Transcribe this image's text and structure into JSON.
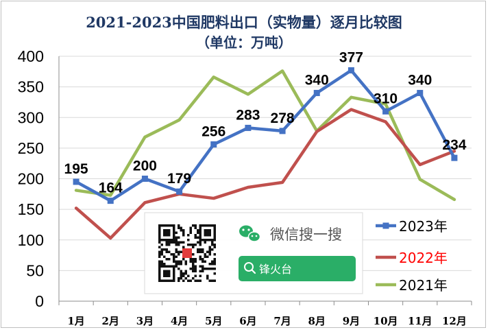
{
  "chart_data": {
    "type": "line",
    "title": "2021-2023中国肥料出口（实物量）逐月比较图",
    "subtitle": "（单位：万吨）",
    "categories": [
      "1月",
      "2月",
      "3月",
      "4月",
      "5月",
      "6月",
      "7月",
      "8月",
      "9月",
      "10月",
      "11月",
      "12月"
    ],
    "ylim": [
      0,
      400
    ],
    "yticks": [
      0,
      50,
      100,
      150,
      200,
      250,
      300,
      350,
      400
    ],
    "grid": true,
    "legend_position": "bottom-right",
    "series": [
      {
        "name": "2023年",
        "color": "#4472c4",
        "marker": "square",
        "values": [
          195,
          164,
          200,
          179,
          256,
          283,
          278,
          340,
          377,
          310,
          340,
          234
        ],
        "labels": [
          "195",
          "164",
          "200",
          "179",
          "256",
          "283",
          "278",
          "340",
          "377",
          "310",
          "340",
          "234"
        ]
      },
      {
        "name": "2022年",
        "color": "#c0504d",
        "marker": "none",
        "values": [
          152,
          103,
          161,
          175,
          168,
          186,
          194,
          277,
          313,
          293,
          223,
          245
        ],
        "labels": []
      },
      {
        "name": "2021年",
        "color": "#9bbb59",
        "marker": "none",
        "values": [
          181,
          173,
          268,
          296,
          366,
          338,
          376,
          278,
          333,
          322,
          199,
          166
        ],
        "labels": []
      }
    ],
    "legend_colors": {
      "2023年": "#000000",
      "2022年": "#ff0000",
      "2021年": "#000000"
    }
  },
  "overlay": {
    "wechat_text": "微信搜一搜",
    "search_text": "锋火台",
    "wechat_green": "#2aae67",
    "wechat_icon": "wechat-icon",
    "search_icon": "search-icon",
    "qr_icon": "qr-code-icon"
  }
}
